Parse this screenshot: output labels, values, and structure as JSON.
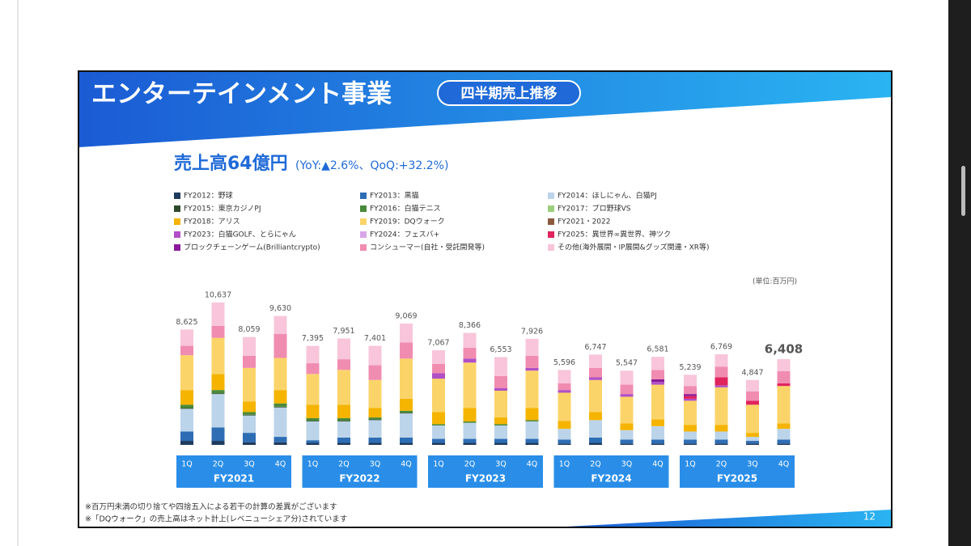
{
  "slide": {
    "title": "エンターテインメント事業",
    "badge": "四半期売上推移",
    "headline": "売上高64億円",
    "headline_note": "(YoY:▲2.6%、QoQ:+32.2%)",
    "unit": "(単位:百万円)",
    "footnotes": [
      "※百万円未満の切り捨てや四捨五入による若干の計算の差異がございます",
      "※「DQウォーク」の売上高はネット計上(レベニューシェア分)されています"
    ],
    "page_number": "12"
  },
  "chart_data": {
    "type": "stacked_bar",
    "ylim": [
      0,
      11000
    ],
    "categories": [
      "1Q",
      "2Q",
      "3Q",
      "4Q",
      "1Q",
      "2Q",
      "3Q",
      "4Q",
      "1Q",
      "2Q",
      "3Q",
      "4Q",
      "1Q",
      "2Q",
      "3Q",
      "4Q",
      "1Q",
      "2Q",
      "3Q",
      "4Q"
    ],
    "groups": [
      "FY2021",
      "FY2022",
      "FY2023",
      "FY2024",
      "FY2025"
    ],
    "series": [
      {
        "name": "FY2012：野球",
        "color": "#1f3b5c",
        "values": [
          300,
          300,
          200,
          200,
          150,
          150,
          150,
          150,
          150,
          150,
          150,
          150,
          100,
          150,
          100,
          100,
          100,
          100,
          100,
          100
        ]
      },
      {
        "name": "FY2013：黒猫",
        "color": "#2e6db4",
        "values": [
          700,
          1000,
          700,
          400,
          200,
          400,
          400,
          400,
          300,
          300,
          300,
          300,
          300,
          400,
          300,
          300,
          300,
          300,
          200,
          300
        ]
      },
      {
        "name": "FY2014：ほしにゃん、白猫PJ",
        "color": "#bcd4ea",
        "values": [
          1700,
          2500,
          1300,
          2200,
          1400,
          1200,
          1300,
          1800,
          1000,
          1200,
          1000,
          1300,
          800,
          1300,
          700,
          1000,
          600,
          600,
          300,
          800
        ]
      },
      {
        "name": "FY2015：東京カジノPJ",
        "color": "#2d4a2d",
        "values": [
          50,
          50,
          50,
          50,
          50,
          50,
          50,
          50,
          0,
          0,
          0,
          0,
          0,
          0,
          0,
          0,
          0,
          0,
          0,
          0
        ]
      },
      {
        "name": "FY2016：白猫テニス",
        "color": "#4a8a3a",
        "values": [
          250,
          250,
          200,
          250,
          200,
          200,
          150,
          150,
          100,
          100,
          100,
          100,
          0,
          0,
          0,
          0,
          0,
          0,
          0,
          0
        ]
      },
      {
        "name": "FY2017：プロ野球VS",
        "color": "#9ccf7c",
        "values": [
          0,
          0,
          0,
          0,
          0,
          0,
          0,
          0,
          0,
          0,
          0,
          0,
          0,
          0,
          0,
          0,
          0,
          0,
          0,
          0
        ]
      },
      {
        "name": "FY2018：アリス",
        "color": "#f5b400",
        "values": [
          1100,
          1200,
          800,
          1000,
          1000,
          1000,
          700,
          900,
          900,
          1000,
          500,
          900,
          600,
          600,
          500,
          500,
          500,
          500,
          300,
          400
        ]
      },
      {
        "name": "FY2019：DQウォーク",
        "color": "#fbd469",
        "values": [
          2600,
          2700,
          2500,
          2400,
          2300,
          2600,
          2100,
          3000,
          2500,
          3400,
          2000,
          2800,
          2100,
          2400,
          2000,
          2600,
          1800,
          2800,
          2100,
          2800
        ]
      },
      {
        "name": "FY2021・2022",
        "color": "#8b5a3c",
        "values": [
          0,
          0,
          0,
          0,
          0,
          0,
          0,
          0,
          0,
          0,
          0,
          0,
          0,
          0,
          0,
          0,
          0,
          0,
          0,
          0
        ]
      },
      {
        "name": "FY2023：白猫GOLF、とらにゃん",
        "color": "#b04fc6",
        "values": [
          0,
          0,
          0,
          0,
          0,
          0,
          0,
          0,
          400,
          300,
          200,
          200,
          200,
          200,
          200,
          200,
          150,
          150,
          0,
          0
        ]
      },
      {
        "name": "FY2024：フェスバ+",
        "color": "#d9a6e8",
        "values": [
          0,
          0,
          0,
          0,
          0,
          0,
          0,
          0,
          0,
          0,
          0,
          0,
          0,
          0,
          0,
          0,
          0,
          0,
          0,
          0
        ]
      },
      {
        "name": "FY2025：異世界∞異世界、神ツク",
        "color": "#e0245e",
        "values": [
          0,
          0,
          0,
          0,
          0,
          0,
          0,
          0,
          0,
          0,
          0,
          0,
          0,
          0,
          0,
          0,
          200,
          600,
          300,
          200
        ]
      },
      {
        "name": "ブロックチェーンゲーム(Brilliantcrypto)",
        "color": "#8a1a9a",
        "values": [
          0,
          0,
          0,
          0,
          0,
          0,
          0,
          0,
          0,
          0,
          0,
          0,
          0,
          0,
          0,
          200,
          150,
          0,
          0,
          0
        ]
      },
      {
        "name": "コンシューマー(自社・受託開発等)",
        "color": "#f08cb0",
        "values": [
          700,
          900,
          900,
          1800,
          800,
          800,
          1100,
          1200,
          700,
          800,
          900,
          900,
          500,
          700,
          700,
          700,
          600,
          800,
          700,
          900
        ]
      },
      {
        "name": "その他(海外展開・IP展開&グッズ関連・XR等)",
        "color": "#f8c5da",
        "values": [
          1225,
          1737,
          1409,
          1330,
          1295,
          1551,
          1451,
          1419,
          1017,
          1116,
          1403,
          1276,
          996,
          997,
          1047,
          981,
          839,
          919,
          847,
          908
        ]
      }
    ],
    "totals": {
      "values": [
        8625,
        10637,
        8059,
        9630,
        7395,
        7951,
        7401,
        9069,
        7067,
        8366,
        6553,
        7926,
        5596,
        6747,
        5547,
        6581,
        5239,
        6769,
        4847,
        6408
      ],
      "value_labels": [
        "8,625",
        "10,637",
        "8,059",
        "9,630",
        "7,395",
        "7,951",
        "7,401",
        "9,069",
        "7,067",
        "8,366",
        "6,553",
        "7,926",
        "5,596",
        "6,747",
        "5,547",
        "6,581",
        "5,239",
        "6,769",
        "4,847",
        "6,408"
      ]
    }
  }
}
